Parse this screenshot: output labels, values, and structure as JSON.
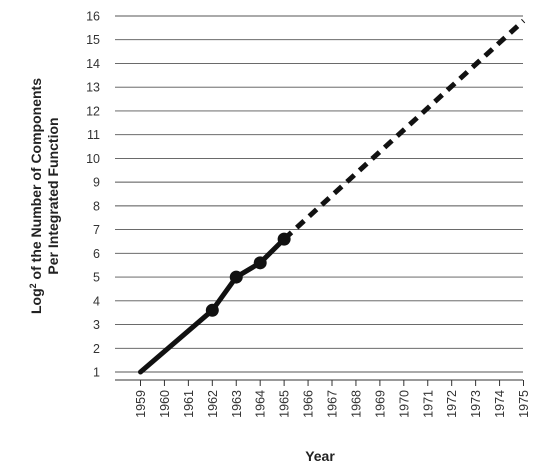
{
  "chart_data": {
    "type": "line",
    "title": "",
    "xlabel": "Year",
    "ylabel": {
      "line1_prefix": "Log",
      "line1_sup": "2",
      "line1_rest": " of the Number of Components",
      "line2": "Per Integrated Function"
    },
    "x_ticks": [
      "1959",
      "1960",
      "1961",
      "1962",
      "1963",
      "1964",
      "1965",
      "1966",
      "1967",
      "1968",
      "1969",
      "1970",
      "1971",
      "1972",
      "1973",
      "1974",
      "1975"
    ],
    "y_ticks": [
      "1",
      "2",
      "3",
      "4",
      "5",
      "6",
      "7",
      "8",
      "9",
      "10",
      "11",
      "12",
      "13",
      "14",
      "15",
      "16"
    ],
    "xlim": [
      1959,
      1975
    ],
    "ylim": [
      1,
      16
    ],
    "grid": "horizontal",
    "series": [
      {
        "style": "solid",
        "markers": [
          false,
          true,
          true,
          true,
          true
        ],
        "points": [
          [
            1959,
            1.0
          ],
          [
            1962,
            3.6
          ],
          [
            1963,
            5.0
          ],
          [
            1964,
            5.6
          ],
          [
            1965,
            6.6
          ]
        ]
      },
      {
        "style": "dashed",
        "points": [
          [
            1965,
            6.6
          ],
          [
            1975,
            15.8
          ]
        ]
      }
    ],
    "colors": {
      "line": "#111111",
      "grid": "#555555",
      "axis": "#333333"
    }
  }
}
